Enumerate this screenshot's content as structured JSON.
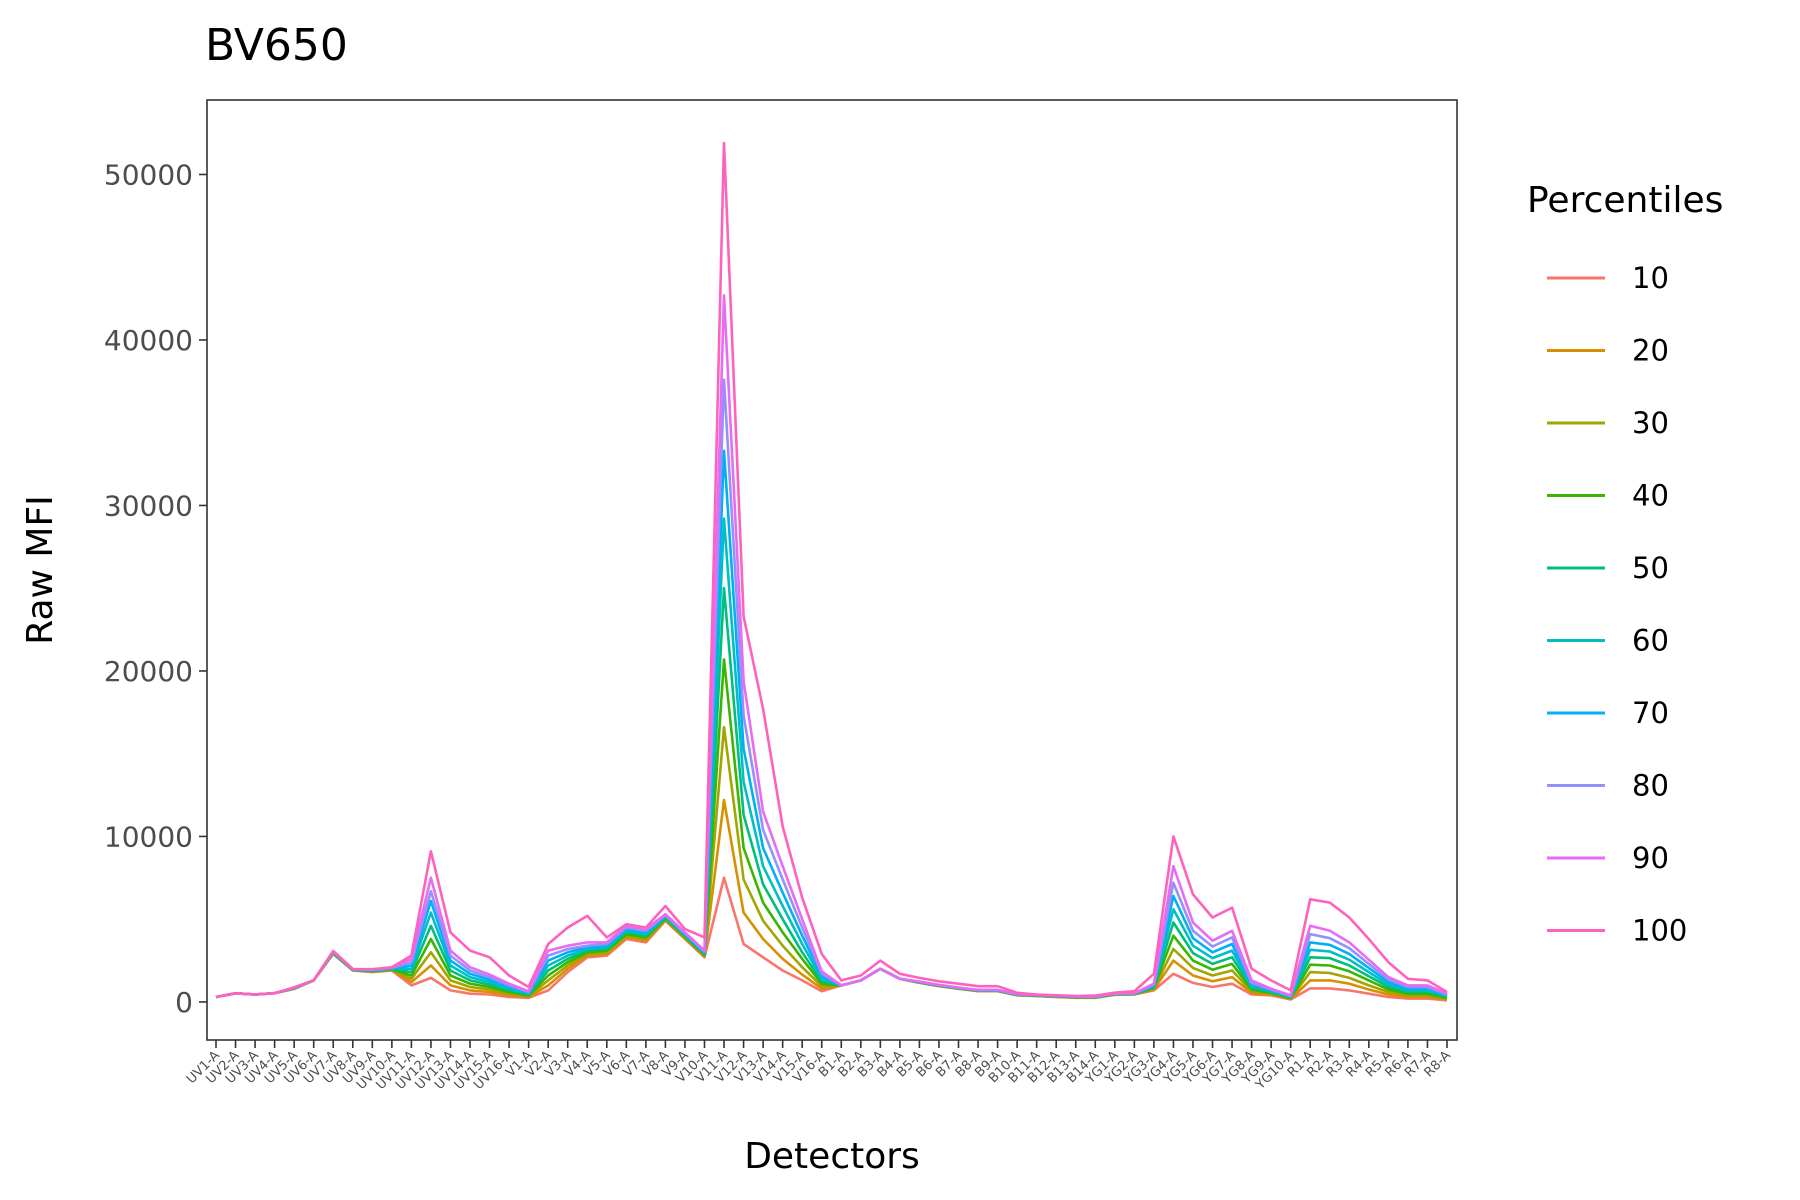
{
  "chart_data": {
    "type": "line",
    "title": "BV650",
    "xlabel": "Detectors",
    "ylabel": "Raw MFI",
    "ylim": [
      -2300,
      54500
    ],
    "yticks": [
      0,
      10000,
      20000,
      30000,
      40000,
      50000
    ],
    "ytick_labels": [
      "0",
      "10000",
      "20000",
      "30000",
      "40000",
      "50000"
    ],
    "grid": false,
    "legend": {
      "title": "Percentiles",
      "position": "right"
    },
    "categories": [
      "UV1-A",
      "UV2-A",
      "UV3-A",
      "UV4-A",
      "UV5-A",
      "UV6-A",
      "UV7-A",
      "UV8-A",
      "UV9-A",
      "UV10-A",
      "UV11-A",
      "UV12-A",
      "UV13-A",
      "UV14-A",
      "UV15-A",
      "UV16-A",
      "V1-A",
      "V2-A",
      "V3-A",
      "V4-A",
      "V5-A",
      "V6-A",
      "V7-A",
      "V8-A",
      "V9-A",
      "V10-A",
      "V11-A",
      "V12-A",
      "V13-A",
      "V14-A",
      "V15-A",
      "V16-A",
      "B1-A",
      "B2-A",
      "B3-A",
      "B4-A",
      "B5-A",
      "B6-A",
      "B7-A",
      "B8-A",
      "B9-A",
      "B10-A",
      "B11-A",
      "B12-A",
      "B13-A",
      "B14-A",
      "YG1-A",
      "YG2-A",
      "YG3-A",
      "YG4-A",
      "YG5-A",
      "YG6-A",
      "YG7-A",
      "YG8-A",
      "YG9-A",
      "YG10-A",
      "R1-A",
      "R2-A",
      "R3-A",
      "R4-A",
      "R5-A",
      "R6-A",
      "R7-A",
      "R8-A"
    ],
    "series": [
      {
        "name": "10",
        "color": "#F8766D",
        "values": [
          300,
          520,
          450,
          530,
          790,
          1300,
          2900,
          1900,
          1800,
          1900,
          1000,
          1450,
          700,
          500,
          450,
          300,
          250,
          700,
          1800,
          2700,
          2800,
          3800,
          3600,
          4900,
          3800,
          2700,
          7500,
          3500,
          2700,
          1900,
          1300,
          650,
          1000,
          1300,
          2000,
          1400,
          1150,
          950,
          800,
          650,
          650,
          400,
          350,
          300,
          250,
          250,
          430,
          450,
          700,
          1700,
          1150,
          900,
          1100,
          450,
          400,
          150,
          820,
          820,
          700,
          500,
          300,
          200,
          200,
          100
        ]
      },
      {
        "name": "20",
        "color": "#D89000",
        "values": [
          300,
          520,
          450,
          530,
          800,
          1300,
          2920,
          1910,
          1820,
          1930,
          1200,
          2200,
          1000,
          700,
          600,
          400,
          300,
          1000,
          2000,
          2800,
          2900,
          3900,
          3700,
          4950,
          3850,
          2750,
          12200,
          5400,
          3800,
          2600,
          1650,
          800,
          1000,
          1300,
          2000,
          1400,
          1160,
          960,
          800,
          660,
          660,
          410,
          360,
          310,
          260,
          260,
          440,
          460,
          750,
          2500,
          1600,
          1250,
          1500,
          550,
          450,
          180,
          1300,
          1300,
          1100,
          750,
          450,
          300,
          300,
          150
        ]
      },
      {
        "name": "30",
        "color": "#A3A500",
        "values": [
          300,
          520,
          450,
          530,
          810,
          1300,
          2940,
          1920,
          1840,
          1950,
          1400,
          3000,
          1300,
          900,
          750,
          500,
          350,
          1300,
          2200,
          2900,
          3000,
          4000,
          3800,
          5000,
          3900,
          2800,
          16600,
          7400,
          4900,
          3400,
          2100,
          950,
          1000,
          1300,
          2000,
          1400,
          1170,
          970,
          810,
          670,
          670,
          420,
          370,
          320,
          270,
          270,
          450,
          470,
          800,
          3200,
          2050,
          1600,
          1900,
          650,
          500,
          210,
          1800,
          1750,
          1450,
          1000,
          600,
          400,
          400,
          200
        ]
      },
      {
        "name": "40",
        "color": "#39B600",
        "values": [
          300,
          520,
          450,
          530,
          820,
          1300,
          2960,
          1930,
          1860,
          1970,
          1600,
          3800,
          1600,
          1100,
          900,
          600,
          400,
          1600,
          2400,
          3000,
          3100,
          4100,
          3900,
          5050,
          3950,
          2850,
          20700,
          9300,
          6000,
          4200,
          2600,
          1100,
          1000,
          1300,
          2000,
          1400,
          1180,
          980,
          820,
          680,
          680,
          430,
          380,
          330,
          280,
          280,
          460,
          480,
          850,
          4000,
          2500,
          1950,
          2300,
          750,
          550,
          240,
          2250,
          2200,
          1850,
          1300,
          750,
          500,
          500,
          250
        ]
      },
      {
        "name": "50",
        "color": "#00BF7D",
        "values": [
          300,
          520,
          450,
          530,
          830,
          1300,
          2980,
          1940,
          1880,
          1990,
          1800,
          4600,
          1900,
          1300,
          1050,
          700,
          450,
          1900,
          2600,
          3100,
          3200,
          4200,
          4000,
          5100,
          4000,
          2900,
          25000,
          11300,
          7100,
          5000,
          3000,
          1250,
          1000,
          1300,
          2000,
          1400,
          1190,
          990,
          830,
          690,
          690,
          440,
          390,
          340,
          290,
          290,
          470,
          490,
          900,
          4800,
          2950,
          2300,
          2700,
          850,
          600,
          270,
          2700,
          2650,
          2200,
          1550,
          900,
          600,
          600,
          300
        ]
      },
      {
        "name": "60",
        "color": "#00BFC4",
        "values": [
          300,
          520,
          450,
          530,
          840,
          1300,
          3000,
          1950,
          1900,
          2010,
          2000,
          5400,
          2200,
          1500,
          1200,
          800,
          500,
          2200,
          2800,
          3200,
          3300,
          4300,
          4100,
          5150,
          4050,
          2950,
          29200,
          13300,
          8200,
          5800,
          3500,
          1400,
          1000,
          1300,
          2000,
          1400,
          1200,
          1000,
          840,
          700,
          700,
          450,
          400,
          350,
          300,
          300,
          480,
          500,
          950,
          5600,
          3400,
          2650,
          3100,
          950,
          650,
          300,
          3150,
          3050,
          2550,
          1800,
          1050,
          700,
          700,
          350
        ]
      },
      {
        "name": "70",
        "color": "#00B0F6",
        "values": [
          300,
          520,
          450,
          530,
          850,
          1300,
          3020,
          1960,
          1920,
          2030,
          2200,
          6100,
          2500,
          1700,
          1350,
          900,
          550,
          2500,
          3000,
          3300,
          3400,
          4400,
          4200,
          5200,
          4100,
          3000,
          33300,
          15300,
          9300,
          6600,
          4000,
          1550,
          1000,
          1300,
          2000,
          1400,
          1210,
          1010,
          850,
          710,
          710,
          460,
          410,
          360,
          310,
          310,
          490,
          510,
          1000,
          6400,
          3850,
          3000,
          3500,
          1050,
          700,
          330,
          3600,
          3450,
          2900,
          2050,
          1200,
          800,
          800,
          400
        ]
      },
      {
        "name": "80",
        "color": "#9590FF",
        "values": [
          300,
          520,
          450,
          530,
          860,
          1300,
          3040,
          1970,
          1940,
          2050,
          2400,
          6700,
          2800,
          1900,
          1500,
          1000,
          600,
          2800,
          3200,
          3400,
          3500,
          4500,
          4300,
          5250,
          4150,
          3050,
          37600,
          17300,
          10400,
          7400,
          4500,
          1700,
          1000,
          1300,
          2000,
          1400,
          1220,
          1020,
          860,
          720,
          720,
          470,
          420,
          370,
          320,
          320,
          500,
          520,
          1050,
          7200,
          4300,
          3350,
          3900,
          1150,
          750,
          360,
          4100,
          3850,
          3250,
          2300,
          1350,
          900,
          900,
          450
        ]
      },
      {
        "name": "90",
        "color": "#E76BF3",
        "values": [
          300,
          520,
          450,
          530,
          870,
          1300,
          3060,
          1980,
          1960,
          2070,
          2600,
          7500,
          3100,
          2100,
          1650,
          1100,
          650,
          3100,
          3400,
          3600,
          3600,
          4600,
          4400,
          5300,
          4200,
          3100,
          42700,
          19400,
          11500,
          8200,
          5000,
          1850,
          1000,
          1300,
          2000,
          1400,
          1230,
          1030,
          870,
          730,
          730,
          480,
          430,
          380,
          330,
          330,
          510,
          530,
          1100,
          8200,
          4800,
          3700,
          4300,
          1300,
          800,
          400,
          4600,
          4300,
          3600,
          2550,
          1500,
          1000,
          1000,
          500
        ]
      },
      {
        "name": "100",
        "color": "#FF62BC",
        "values": [
          300,
          520,
          450,
          530,
          880,
          1300,
          3080,
          1990,
          1980,
          2090,
          2800,
          9100,
          4200,
          3100,
          2700,
          1600,
          900,
          3500,
          4500,
          5200,
          3900,
          4700,
          4500,
          5800,
          4400,
          3900,
          51900,
          23300,
          17700,
          10600,
          6300,
          2900,
          1300,
          1600,
          2500,
          1700,
          1450,
          1250,
          1100,
          950,
          950,
          550,
          450,
          400,
          350,
          380,
          560,
          650,
          1700,
          10000,
          6500,
          5100,
          5700,
          2000,
          1300,
          700,
          6200,
          6000,
          5100,
          3800,
          2400,
          1400,
          1300,
          600
        ]
      }
    ]
  }
}
